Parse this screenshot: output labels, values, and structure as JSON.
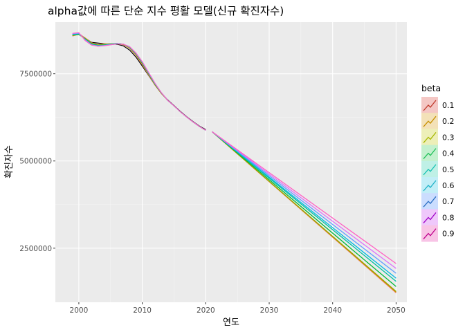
{
  "chart_data": {
    "type": "line",
    "title": "alpha값에 따른 단순 지수 평활 모델(신규 확진자수)",
    "xlabel": "연도",
    "ylabel": "확진자수",
    "xlim": [
      1996.3,
      2051.7
    ],
    "ylim": [
      950000,
      8980000
    ],
    "x_ticks": [
      2000,
      2010,
      2020,
      2030,
      2040,
      2050
    ],
    "x_tick_labels": [
      "2000",
      "2010",
      "2020",
      "2030",
      "2040",
      "2050"
    ],
    "x_minor_ticks": [
      2005,
      2015,
      2025,
      2035,
      2045
    ],
    "y_ticks": [
      2500000,
      5000000,
      7500000
    ],
    "y_tick_labels": [
      "2500000",
      "5000000",
      "7500000"
    ],
    "y_minor_ticks": [
      3750000,
      6250000
    ],
    "grid": true,
    "legend_position": "right",
    "legend_title": "beta",
    "observed": {
      "x": [
        1999,
        2000,
        2001,
        2002,
        2003,
        2004,
        2005,
        2006,
        2007,
        2008,
        2009,
        2010,
        2011,
        2012,
        2013,
        2014,
        2015,
        2016,
        2017,
        2018,
        2019,
        2020
      ],
      "y": [
        8600000,
        8650000,
        8520000,
        8400000,
        8380000,
        8360000,
        8340000,
        8350000,
        8300000,
        8180000,
        7980000,
        7720000,
        7450000,
        7180000,
        6950000,
        6750000,
        6590000,
        6420000,
        6270000,
        6130000,
        6000000,
        5900000
      ]
    },
    "series": [
      {
        "name": "0.1",
        "color": "#F8766D",
        "x": [
          1999,
          2000,
          2001,
          2002,
          2003,
          2004,
          2005,
          2006,
          2007,
          2008,
          2009,
          2010,
          2011,
          2012,
          2013,
          2014,
          2015,
          2016,
          2017,
          2018,
          2019,
          2020,
          2021,
          2050
        ],
        "y": [
          8580000,
          8640000,
          8530000,
          8390000,
          8340000,
          8360000,
          8360000,
          8360000,
          8330000,
          8230000,
          8030000,
          7760000,
          7460000,
          7170000,
          6930000,
          6740000,
          6580000,
          6410000,
          6260000,
          6120000,
          5990000,
          5880000,
          5840000,
          1220000
        ]
      },
      {
        "name": "0.2",
        "color": "#D39200",
        "x": [
          1999,
          2000,
          2001,
          2002,
          2003,
          2004,
          2005,
          2006,
          2007,
          2008,
          2009,
          2010,
          2011,
          2012,
          2013,
          2014,
          2015,
          2016,
          2017,
          2018,
          2019,
          2020,
          2021,
          2050
        ],
        "y": [
          8590000,
          8630000,
          8520000,
          8380000,
          8330000,
          8350000,
          8360000,
          8370000,
          8340000,
          8240000,
          8050000,
          7780000,
          7480000,
          7180000,
          6940000,
          6740000,
          6580000,
          6410000,
          6260000,
          6120000,
          5990000,
          5880000,
          5840000,
          1240000
        ]
      },
      {
        "name": "0.3",
        "color": "#93AA00",
        "x": [
          1999,
          2000,
          2001,
          2002,
          2003,
          2004,
          2005,
          2006,
          2007,
          2008,
          2009,
          2010,
          2011,
          2012,
          2013,
          2014,
          2015,
          2016,
          2017,
          2018,
          2019,
          2020,
          2021,
          2050
        ],
        "y": [
          8600000,
          8620000,
          8510000,
          8370000,
          8320000,
          8340000,
          8360000,
          8370000,
          8350000,
          8250000,
          8060000,
          7800000,
          7490000,
          7190000,
          6940000,
          6740000,
          6580000,
          6410000,
          6260000,
          6120000,
          5990000,
          5880000,
          5840000,
          1260000
        ]
      },
      {
        "name": "0.4",
        "color": "#00BA38",
        "x": [
          1999,
          2000,
          2001,
          2002,
          2003,
          2004,
          2005,
          2006,
          2007,
          2008,
          2009,
          2010,
          2011,
          2012,
          2013,
          2014,
          2015,
          2016,
          2017,
          2018,
          2019,
          2020,
          2021,
          2050
        ],
        "y": [
          8610000,
          8630000,
          8500000,
          8360000,
          8320000,
          8330000,
          8350000,
          8370000,
          8350000,
          8260000,
          8070000,
          7810000,
          7500000,
          7200000,
          6950000,
          6740000,
          6580000,
          6410000,
          6260000,
          6120000,
          5990000,
          5880000,
          5840000,
          1400000
        ]
      },
      {
        "name": "0.5",
        "color": "#00C19F",
        "x": [
          1999,
          2000,
          2001,
          2002,
          2003,
          2004,
          2005,
          2006,
          2007,
          2008,
          2009,
          2010,
          2011,
          2012,
          2013,
          2014,
          2015,
          2016,
          2017,
          2018,
          2019,
          2020,
          2021,
          2050
        ],
        "y": [
          8620000,
          8640000,
          8490000,
          8350000,
          8310000,
          8320000,
          8350000,
          8370000,
          8350000,
          8260000,
          8080000,
          7820000,
          7510000,
          7210000,
          6950000,
          6740000,
          6580000,
          6410000,
          6260000,
          6120000,
          5990000,
          5880000,
          5840000,
          1550000
        ]
      },
      {
        "name": "0.6",
        "color": "#00B9E3",
        "x": [
          1999,
          2000,
          2001,
          2002,
          2003,
          2004,
          2005,
          2006,
          2007,
          2008,
          2009,
          2010,
          2011,
          2012,
          2013,
          2014,
          2015,
          2016,
          2017,
          2018,
          2019,
          2020,
          2021,
          2050
        ],
        "y": [
          8630000,
          8650000,
          8480000,
          8340000,
          8300000,
          8320000,
          8340000,
          8370000,
          8350000,
          8270000,
          8080000,
          7830000,
          7520000,
          7220000,
          6960000,
          6740000,
          6580000,
          6410000,
          6260000,
          6120000,
          5990000,
          5880000,
          5840000,
          1640000
        ]
      },
      {
        "name": "0.7",
        "color": "#619CFF",
        "x": [
          1999,
          2000,
          2001,
          2002,
          2003,
          2004,
          2005,
          2006,
          2007,
          2008,
          2009,
          2010,
          2011,
          2012,
          2013,
          2014,
          2015,
          2016,
          2017,
          2018,
          2019,
          2020,
          2021,
          2050
        ],
        "y": [
          8640000,
          8660000,
          8470000,
          8330000,
          8300000,
          8310000,
          8340000,
          8360000,
          8350000,
          8270000,
          8090000,
          7840000,
          7530000,
          7220000,
          6960000,
          6740000,
          6580000,
          6410000,
          6260000,
          6120000,
          5990000,
          5880000,
          5840000,
          1780000
        ]
      },
      {
        "name": "0.8",
        "color": "#DB72FB",
        "x": [
          1999,
          2000,
          2001,
          2002,
          2003,
          2004,
          2005,
          2006,
          2007,
          2008,
          2009,
          2010,
          2011,
          2012,
          2013,
          2014,
          2015,
          2016,
          2017,
          2018,
          2019,
          2020,
          2021,
          2050
        ],
        "y": [
          8650000,
          8670000,
          8460000,
          8330000,
          8290000,
          8310000,
          8330000,
          8360000,
          8350000,
          8280000,
          8090000,
          7840000,
          7530000,
          7230000,
          6960000,
          6740000,
          6580000,
          6410000,
          6260000,
          6120000,
          5990000,
          5880000,
          5840000,
          1920000
        ]
      },
      {
        "name": "0.9",
        "color": "#FF61C3",
        "x": [
          1999,
          2000,
          2001,
          2002,
          2003,
          2004,
          2005,
          2006,
          2007,
          2008,
          2009,
          2010,
          2011,
          2012,
          2013,
          2014,
          2015,
          2016,
          2017,
          2018,
          2019,
          2020,
          2021,
          2050
        ],
        "y": [
          8660000,
          8680000,
          8450000,
          8320000,
          8290000,
          8300000,
          8330000,
          8360000,
          8350000,
          8280000,
          8100000,
          7850000,
          7540000,
          7230000,
          6960000,
          6740000,
          6580000,
          6410000,
          6260000,
          6120000,
          5990000,
          5880000,
          5840000,
          2060000
        ]
      }
    ]
  },
  "legend_colors": {
    "line_colors": [
      "#C0392B",
      "#C89000",
      "#A8B800",
      "#22C25A",
      "#19C4B4",
      "#1FB2C8",
      "#2A6FC4",
      "#A000C8",
      "#C0008C"
    ],
    "fill_colors": [
      "#F4C7C4",
      "#F3E1B8",
      "#EDEFB8",
      "#C4F0CE",
      "#BFF0E6",
      "#C2EEF7",
      "#CBDDFE",
      "#EFC8FB",
      "#F8C4E6"
    ]
  }
}
